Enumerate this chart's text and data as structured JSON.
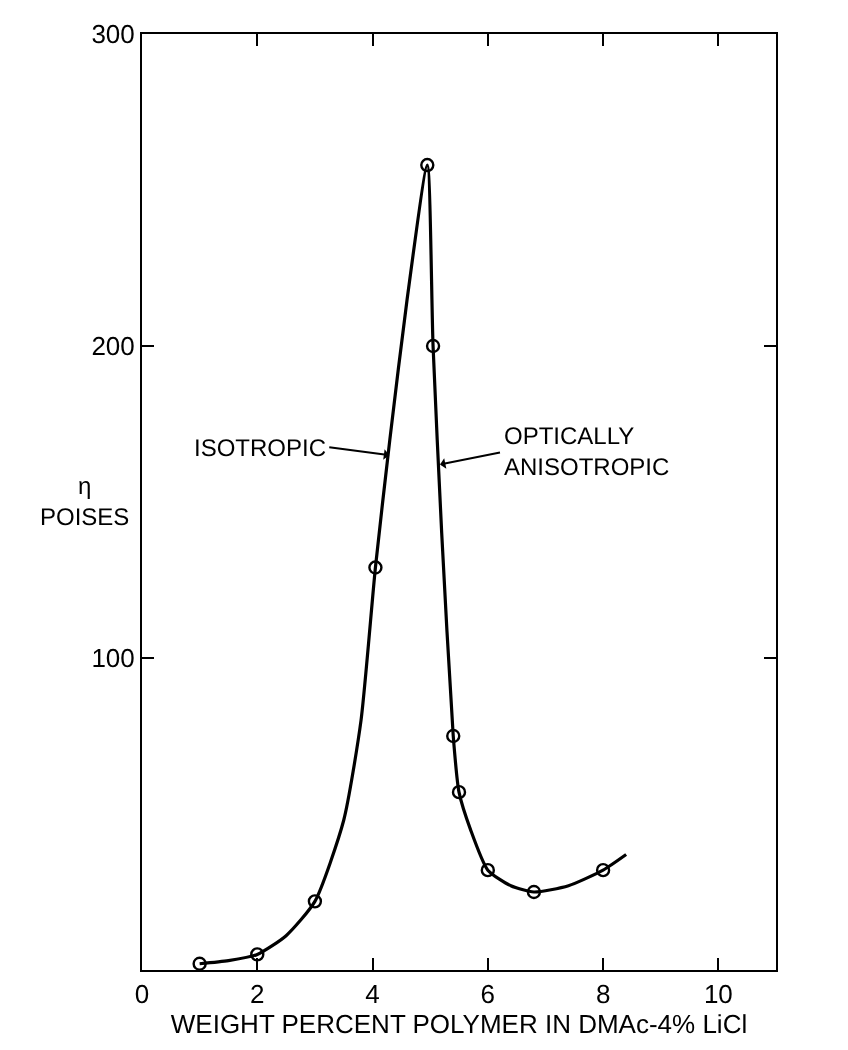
{
  "chart_data": {
    "type": "scatter",
    "xlabel": "WEIGHT PERCENT POLYMER IN DMAc-4% LiCl",
    "ylabel": "η POISES",
    "xlim": [
      0,
      11
    ],
    "ylim": [
      0,
      300
    ],
    "xticks": [
      0,
      2,
      4,
      6,
      8,
      10
    ],
    "yticks": [
      100,
      200,
      300
    ],
    "marker": "circle",
    "grid": false,
    "x": [
      1.0,
      2.0,
      3.0,
      4.05,
      4.95,
      5.05,
      5.4,
      5.5,
      6.0,
      6.8,
      8.0
    ],
    "series": [
      {
        "color": "#000000",
        "values": [
          2,
          5,
          22,
          129,
          258,
          200,
          75,
          57,
          32,
          25,
          32
        ]
      },
      {
        "type": "line",
        "color": "#000000",
        "marker": "none",
        "line_style": "solid",
        "x": [
          1.0,
          1.5,
          2.0,
          2.5,
          3.0,
          3.5,
          3.8,
          4.05,
          4.3,
          4.6,
          4.95,
          5.05,
          5.2,
          5.4,
          5.5,
          5.7,
          6.0,
          6.4,
          6.8,
          7.4,
          8.0,
          8.4
        ],
        "values": [
          2,
          3,
          5,
          11,
          22,
          48,
          80,
          129,
          170,
          215,
          258,
          200,
          140,
          75,
          57,
          45,
          32,
          27,
          25,
          27,
          32,
          37
        ]
      }
    ],
    "annotations": [
      {
        "text": "ISOTROPIC",
        "x": 4.29,
        "y": 165
      },
      {
        "text": "OPTICALLY ANISOTROPIC",
        "x": 5.17,
        "y": 162
      }
    ]
  }
}
